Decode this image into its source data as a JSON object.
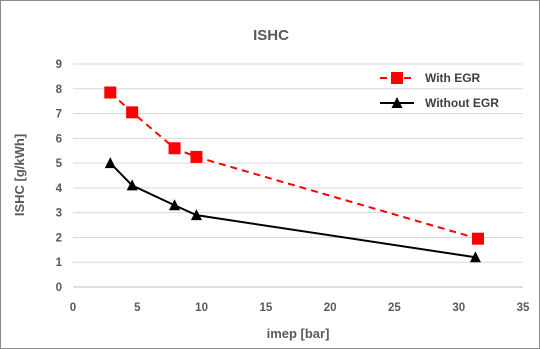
{
  "chart_data": {
    "type": "line",
    "title": "ISHC",
    "xlabel": "imep [bar]",
    "ylabel": "ISHC [g/kWh]",
    "xlim": [
      0,
      35
    ],
    "ylim": [
      0,
      9
    ],
    "xticks": [
      0,
      5,
      10,
      15,
      20,
      25,
      30,
      35
    ],
    "yticks": [
      0,
      1,
      2,
      3,
      4,
      5,
      6,
      7,
      8,
      9
    ],
    "grid": "horizontal",
    "legend_position": "top-right",
    "series": [
      {
        "name": "With EGR",
        "color": "#ff0000",
        "line_style": "dashed",
        "marker": "square",
        "x": [
          2.9,
          4.6,
          7.9,
          9.6,
          31.5
        ],
        "y": [
          7.85,
          7.05,
          5.6,
          5.25,
          1.95
        ]
      },
      {
        "name": "Without EGR",
        "color": "#000000",
        "line_style": "solid",
        "marker": "triangle",
        "x": [
          2.9,
          4.6,
          7.9,
          9.6,
          31.3
        ],
        "y": [
          5.0,
          4.1,
          3.3,
          2.9,
          1.2
        ]
      }
    ]
  }
}
